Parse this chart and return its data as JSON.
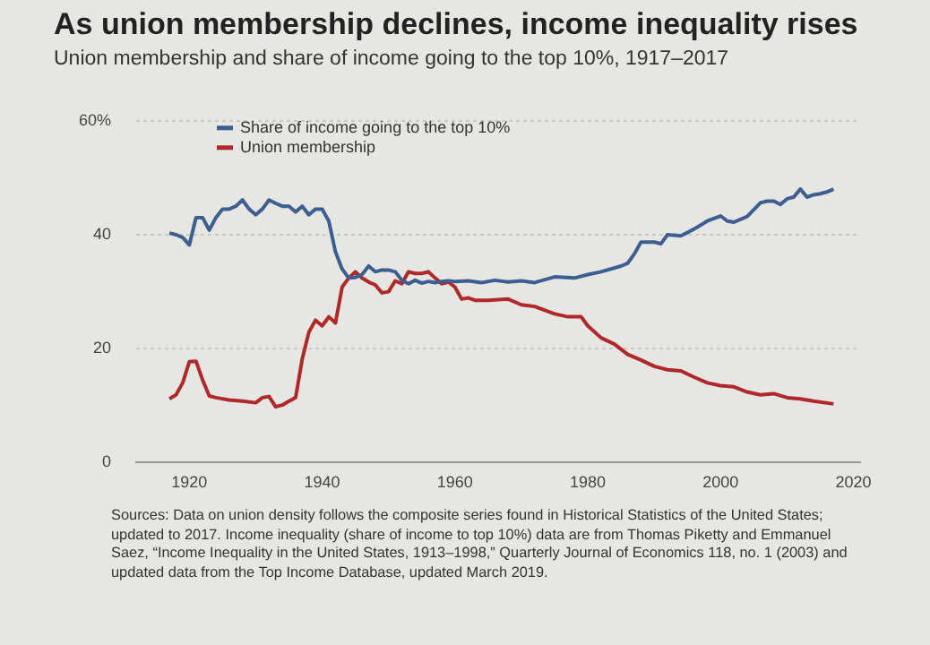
{
  "chart_data": {
    "type": "line",
    "title": "As union membership declines, income inequality rises",
    "subtitle": "Union membership and share of income going to the top 10%, 1917–2017",
    "xlim": [
      1912,
      2021
    ],
    "xticks": [
      1920,
      1940,
      1960,
      1980,
      2000,
      2020
    ],
    "ylim": [
      0,
      60
    ],
    "yticks": [
      0,
      20,
      40,
      {
        "value": 60,
        "label": "60%"
      }
    ],
    "grid": "y",
    "legend": "top left",
    "marker": "none",
    "line_style": "solid",
    "series": [
      {
        "name": "Share of income going to the top 10%",
        "color": "#3d5f8f",
        "x": [
          1917,
          1918,
          1919,
          1920,
          1921,
          1922,
          1923,
          1924,
          1925,
          1926,
          1927,
          1928,
          1929,
          1930,
          1931,
          1932,
          1933,
          1934,
          1935,
          1936,
          1937,
          1938,
          1939,
          1940,
          1941,
          1942,
          1943,
          1944,
          1945,
          1946,
          1947,
          1948,
          1949,
          1950,
          1951,
          1952,
          1953,
          1954,
          1955,
          1956,
          1957,
          1958,
          1959,
          1960,
          1962,
          1964,
          1966,
          1968,
          1970,
          1972,
          1975,
          1978,
          1980,
          1982,
          1985,
          1986,
          1987,
          1988,
          1990,
          1991,
          1992,
          1994,
          1996,
          1998,
          2000,
          2001,
          2002,
          2004,
          2006,
          2007,
          2008,
          2009,
          2010,
          2011,
          2012,
          2013,
          2014,
          2015,
          2016,
          2017
        ],
        "values": [
          40.3,
          40,
          39.5,
          38.2,
          43,
          43,
          40.8,
          43,
          44.5,
          44.5,
          45,
          46.1,
          44.5,
          43.5,
          44.5,
          46.1,
          45.5,
          45,
          45,
          44,
          45,
          43.5,
          44.5,
          44.5,
          42.4,
          37,
          34,
          32.4,
          32.5,
          33,
          34.5,
          33.5,
          33.8,
          33.8,
          33.5,
          32,
          31.4,
          32,
          31.5,
          31.8,
          31.6,
          31.8,
          31.9,
          31.8,
          31.9,
          31.6,
          32,
          31.7,
          31.9,
          31.6,
          32.6,
          32.4,
          33,
          33.5,
          34.5,
          35,
          36.6,
          38.7,
          38.7,
          38.4,
          40,
          39.8,
          41,
          42.4,
          43.3,
          42.4,
          42.2,
          43.2,
          45.6,
          45.9,
          45.9,
          45.3,
          46.3,
          46.6,
          48,
          46.6,
          47,
          47.2,
          47.5,
          48
        ]
      },
      {
        "name": "Union membership",
        "color": "#b0282a",
        "x": [
          1917,
          1918,
          1919,
          1920,
          1921,
          1922,
          1923,
          1924,
          1926,
          1928,
          1930,
          1931,
          1932,
          1933,
          1934,
          1935,
          1936,
          1937,
          1938,
          1939,
          1940,
          1941,
          1942,
          1943,
          1944,
          1945,
          1946,
          1947,
          1948,
          1949,
          1950,
          1951,
          1952,
          1953,
          1954,
          1955,
          1956,
          1957,
          1958,
          1959,
          1960,
          1961,
          1962,
          1963,
          1965,
          1968,
          1970,
          1972,
          1975,
          1977,
          1979,
          1980,
          1982,
          1984,
          1986,
          1988,
          1990,
          1992,
          1994,
          1996,
          1998,
          2000,
          2002,
          2004,
          2006,
          2008,
          2010,
          2012,
          2014,
          2017
        ],
        "values": [
          11.2,
          11.9,
          14,
          17.7,
          17.8,
          14.5,
          11.7,
          11.4,
          11,
          10.8,
          10.5,
          11.4,
          11.6,
          9.8,
          10.1,
          10.8,
          11.4,
          18.2,
          22.9,
          25,
          24,
          25.6,
          24.5,
          30.8,
          32.4,
          33.5,
          32.4,
          31.7,
          31.2,
          29.8,
          30,
          31.9,
          31.4,
          33.5,
          33.2,
          33.2,
          33.5,
          32.4,
          31.4,
          31.7,
          30.8,
          28.7,
          28.9,
          28.5,
          28.5,
          28.7,
          27.7,
          27.4,
          26.1,
          25.6,
          25.6,
          24,
          21.9,
          20.8,
          19,
          18,
          16.9,
          16.3,
          16.1,
          15,
          14,
          13.5,
          13.3,
          12.4,
          11.9,
          12.1,
          11.4,
          11.2,
          10.8,
          10.3
        ]
      }
    ],
    "annotations": [
      "Sources: Data on union density follows the composite series found in Historical Statistics of the United States; updated to 2017. Income inequality (share of income to top 10%) data are from Thomas Piketty and Emmanuel Saez, “Income Inequality in the United States, 1913–1998,” Quarterly Journal of Economics 118, no. 1 (2003) and updated data from the Top Income Database, updated March 2019."
    ]
  }
}
